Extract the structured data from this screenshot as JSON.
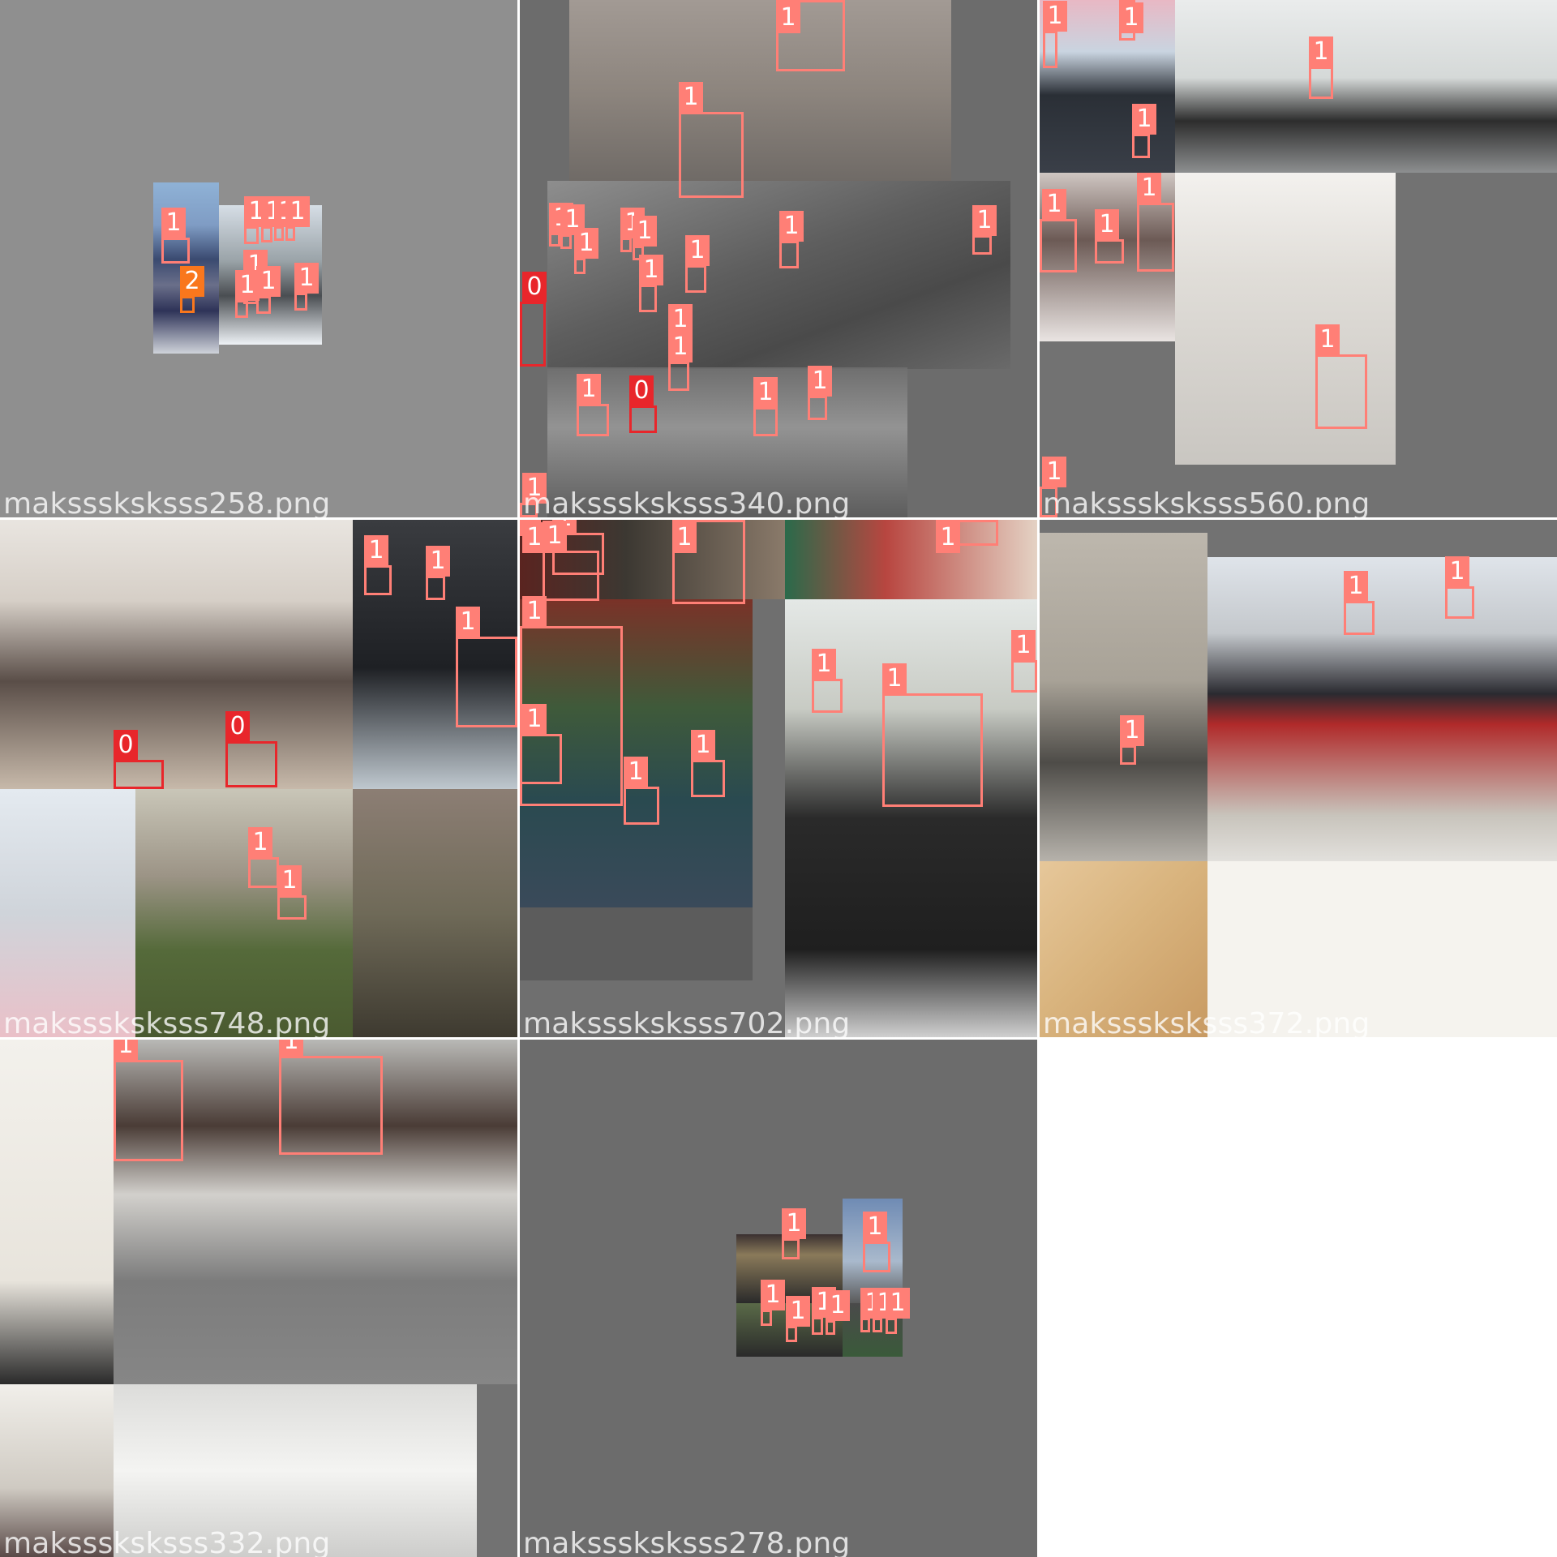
{
  "colors": {
    "class_1": "#ff7f76",
    "class_0": "#e8262b",
    "class_2": "#f9771d",
    "tile_background": "#727272",
    "separator": "#ffffff"
  },
  "mosaic": {
    "tiles": [
      {
        "filename": "maksssksksss258.png",
        "labels": [
          "1",
          "1",
          "1",
          "1",
          "1",
          "1",
          "2",
          "1",
          "1",
          "1"
        ]
      },
      {
        "filename": "maksssksksss340.png",
        "labels": [
          "1",
          "1",
          "1",
          "1",
          "1",
          "1",
          "1",
          "1",
          "1",
          "1",
          "1",
          "1",
          "1",
          "0",
          "1",
          "1",
          "0",
          "1",
          "1"
        ]
      },
      {
        "filename": "maksssksksss560.png",
        "labels": [
          "1",
          "1",
          "1",
          "1",
          "1",
          "1",
          "1",
          "1",
          "1"
        ]
      },
      {
        "filename": "maksssksksss748.png",
        "labels": [
          "0",
          "0",
          "1",
          "1",
          "1",
          "1",
          "1"
        ]
      },
      {
        "filename": "maksssksksss702.png",
        "labels": [
          "1",
          "1",
          "1",
          "1",
          "1",
          "1",
          "1",
          "1",
          "1",
          "1",
          "1",
          "1"
        ]
      },
      {
        "filename": "maksssksksss372.png",
        "labels": [
          "1",
          "1",
          "1"
        ]
      },
      {
        "filename": "maksssksksss332.png",
        "labels": [
          "1",
          "1"
        ]
      },
      {
        "filename": "maksssksksss278.png",
        "labels": [
          "1",
          "1",
          "1",
          "1",
          "1",
          "1",
          "1",
          "1",
          "1"
        ]
      }
    ]
  }
}
